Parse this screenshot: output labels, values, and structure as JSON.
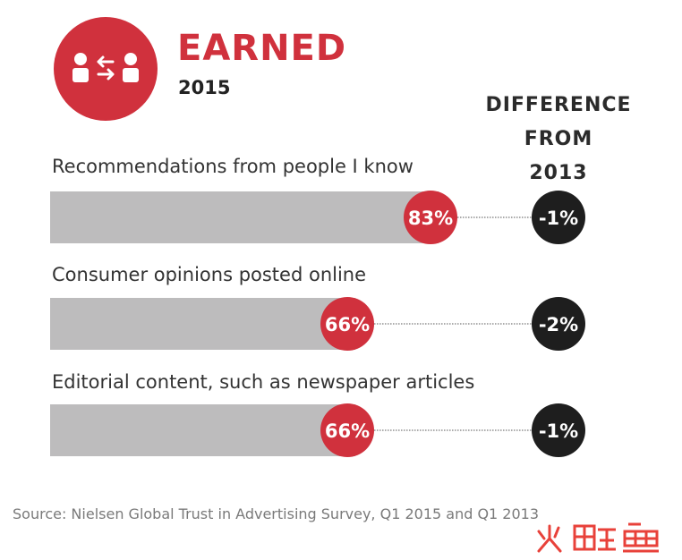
{
  "header": {
    "title": "EARNED",
    "year": "2015",
    "icon": "two-people-exchange-icon"
  },
  "difference_header": [
    "DIFFERENCE",
    "FROM",
    "2013"
  ],
  "colors": {
    "accent": "#d0313d",
    "bar": "#bdbcbd",
    "diff_circle": "#1e1e1e",
    "text": "#2b2b2b"
  },
  "chart_data": {
    "type": "bar",
    "orientation": "horizontal",
    "categories": [
      "Recommendations from people I know",
      "Consumer opinions posted online",
      "Editorial content, such as newspaper articles"
    ],
    "values": [
      83,
      66,
      66
    ],
    "value_labels": [
      "83%",
      "66%",
      "66%"
    ],
    "difference_from_2013": [
      "-1%",
      "-2%",
      "-1%"
    ],
    "xlim": [
      0,
      100
    ]
  },
  "source": "Source: Nielsen Global Trust in Advertising Survey, Q1 2015 and Q1 2013"
}
